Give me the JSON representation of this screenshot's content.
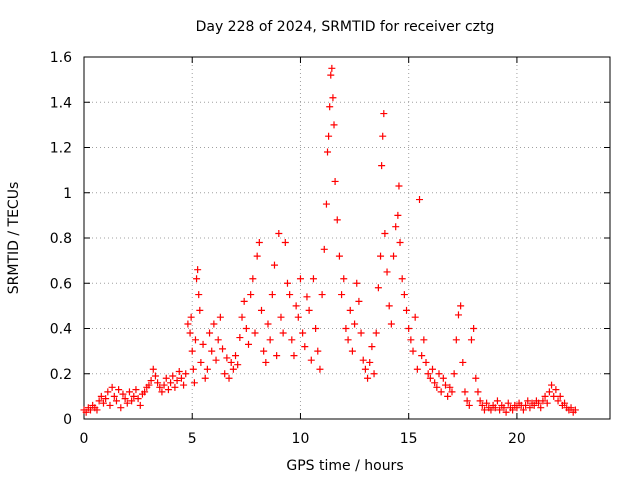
{
  "chart_data": {
    "type": "scatter",
    "title": "Day 228 of 2024, SRMTID for receiver cztg",
    "xlabel": "GPS time / hours",
    "ylabel": "SRMTID / TECUs",
    "xlim": [
      0,
      24.3
    ],
    "ylim": [
      0,
      1.6
    ],
    "xticks": [
      0,
      5,
      10,
      15,
      20
    ],
    "xtick_labels": [
      "0",
      "5",
      "10",
      "15",
      "20"
    ],
    "yticks": [
      0,
      0.2,
      0.4,
      0.6,
      0.8,
      1.0,
      1.2,
      1.4,
      1.6
    ],
    "ytick_labels": [
      "0",
      "0.2",
      "0.4",
      "0.6",
      "0.8",
      "1",
      "1.2",
      "1.4",
      "1.6"
    ],
    "grid": true,
    "marker": "+",
    "colors": {
      "series": "#ff0000",
      "axis": "#000000",
      "grid": "#a0a0a0"
    },
    "series": [
      {
        "name": "SRMTID",
        "points": [
          [
            0.0,
            0.04
          ],
          [
            0.1,
            0.03
          ],
          [
            0.2,
            0.05
          ],
          [
            0.3,
            0.04
          ],
          [
            0.4,
            0.06
          ],
          [
            0.5,
            0.05
          ],
          [
            0.6,
            0.04
          ],
          [
            0.7,
            0.08
          ],
          [
            0.8,
            0.1
          ],
          [
            0.9,
            0.07
          ],
          [
            1.0,
            0.09
          ],
          [
            1.1,
            0.12
          ],
          [
            1.2,
            0.06
          ],
          [
            1.3,
            0.14
          ],
          [
            1.4,
            0.1
          ],
          [
            1.5,
            0.08
          ],
          [
            1.6,
            0.13
          ],
          [
            1.7,
            0.05
          ],
          [
            1.8,
            0.11
          ],
          [
            1.9,
            0.09
          ],
          [
            2.0,
            0.07
          ],
          [
            2.1,
            0.12
          ],
          [
            2.2,
            0.08
          ],
          [
            2.3,
            0.1
          ],
          [
            2.4,
            0.13
          ],
          [
            2.5,
            0.09
          ],
          [
            2.6,
            0.06
          ],
          [
            2.7,
            0.11
          ],
          [
            2.8,
            0.12
          ],
          [
            2.9,
            0.14
          ],
          [
            3.0,
            0.15
          ],
          [
            3.1,
            0.17
          ],
          [
            3.2,
            0.22
          ],
          [
            3.3,
            0.19
          ],
          [
            3.4,
            0.16
          ],
          [
            3.5,
            0.14
          ],
          [
            3.6,
            0.12
          ],
          [
            3.7,
            0.15
          ],
          [
            3.8,
            0.18
          ],
          [
            3.9,
            0.13
          ],
          [
            4.0,
            0.16
          ],
          [
            4.1,
            0.19
          ],
          [
            4.2,
            0.14
          ],
          [
            4.3,
            0.17
          ],
          [
            4.4,
            0.21
          ],
          [
            4.5,
            0.18
          ],
          [
            4.6,
            0.15
          ],
          [
            4.7,
            0.2
          ],
          [
            4.8,
            0.42
          ],
          [
            4.9,
            0.38
          ],
          [
            4.95,
            0.45
          ],
          [
            5.0,
            0.3
          ],
          [
            5.05,
            0.22
          ],
          [
            5.1,
            0.16
          ],
          [
            5.15,
            0.35
          ],
          [
            5.2,
            0.62
          ],
          [
            5.25,
            0.66
          ],
          [
            5.3,
            0.55
          ],
          [
            5.35,
            0.48
          ],
          [
            5.4,
            0.25
          ],
          [
            5.5,
            0.33
          ],
          [
            5.6,
            0.18
          ],
          [
            5.7,
            0.22
          ],
          [
            5.8,
            0.38
          ],
          [
            5.9,
            0.3
          ],
          [
            6.0,
            0.42
          ],
          [
            6.1,
            0.26
          ],
          [
            6.2,
            0.35
          ],
          [
            6.3,
            0.45
          ],
          [
            6.4,
            0.31
          ],
          [
            6.5,
            0.2
          ],
          [
            6.6,
            0.27
          ],
          [
            6.7,
            0.18
          ],
          [
            6.8,
            0.25
          ],
          [
            6.9,
            0.22
          ],
          [
            7.0,
            0.28
          ],
          [
            7.1,
            0.24
          ],
          [
            7.2,
            0.36
          ],
          [
            7.3,
            0.45
          ],
          [
            7.4,
            0.52
          ],
          [
            7.5,
            0.4
          ],
          [
            7.6,
            0.33
          ],
          [
            7.7,
            0.55
          ],
          [
            7.8,
            0.62
          ],
          [
            7.9,
            0.38
          ],
          [
            8.0,
            0.72
          ],
          [
            8.1,
            0.78
          ],
          [
            8.2,
            0.48
          ],
          [
            8.3,
            0.3
          ],
          [
            8.4,
            0.25
          ],
          [
            8.5,
            0.42
          ],
          [
            8.6,
            0.35
          ],
          [
            8.7,
            0.55
          ],
          [
            8.8,
            0.68
          ],
          [
            8.9,
            0.28
          ],
          [
            9.0,
            0.82
          ],
          [
            9.1,
            0.45
          ],
          [
            9.2,
            0.38
          ],
          [
            9.3,
            0.78
          ],
          [
            9.4,
            0.6
          ],
          [
            9.5,
            0.55
          ],
          [
            9.6,
            0.35
          ],
          [
            9.7,
            0.28
          ],
          [
            9.8,
            0.5
          ],
          [
            9.9,
            0.45
          ],
          [
            10.0,
            0.62
          ],
          [
            10.1,
            0.38
          ],
          [
            10.2,
            0.32
          ],
          [
            10.3,
            0.54
          ],
          [
            10.4,
            0.48
          ],
          [
            10.5,
            0.26
          ],
          [
            10.6,
            0.62
          ],
          [
            10.7,
            0.4
          ],
          [
            10.8,
            0.3
          ],
          [
            10.9,
            0.22
          ],
          [
            11.0,
            0.55
          ],
          [
            11.1,
            0.75
          ],
          [
            11.2,
            0.95
          ],
          [
            11.25,
            1.18
          ],
          [
            11.3,
            1.25
          ],
          [
            11.35,
            1.38
          ],
          [
            11.4,
            1.52
          ],
          [
            11.45,
            1.55
          ],
          [
            11.5,
            1.42
          ],
          [
            11.55,
            1.3
          ],
          [
            11.6,
            1.05
          ],
          [
            11.7,
            0.88
          ],
          [
            11.8,
            0.72
          ],
          [
            11.9,
            0.55
          ],
          [
            12.0,
            0.62
          ],
          [
            12.1,
            0.4
          ],
          [
            12.2,
            0.35
          ],
          [
            12.3,
            0.48
          ],
          [
            12.4,
            0.3
          ],
          [
            12.5,
            0.42
          ],
          [
            12.6,
            0.6
          ],
          [
            12.7,
            0.52
          ],
          [
            12.8,
            0.38
          ],
          [
            12.9,
            0.26
          ],
          [
            13.0,
            0.22
          ],
          [
            13.1,
            0.18
          ],
          [
            13.2,
            0.25
          ],
          [
            13.3,
            0.32
          ],
          [
            13.4,
            0.2
          ],
          [
            13.5,
            0.38
          ],
          [
            13.6,
            0.58
          ],
          [
            13.7,
            0.72
          ],
          [
            13.75,
            1.12
          ],
          [
            13.8,
            1.25
          ],
          [
            13.85,
            1.35
          ],
          [
            13.9,
            0.82
          ],
          [
            14.0,
            0.65
          ],
          [
            14.1,
            0.5
          ],
          [
            14.2,
            0.42
          ],
          [
            14.3,
            0.72
          ],
          [
            14.4,
            0.85
          ],
          [
            14.5,
            0.9
          ],
          [
            14.55,
            1.03
          ],
          [
            14.6,
            0.78
          ],
          [
            14.7,
            0.62
          ],
          [
            14.8,
            0.55
          ],
          [
            14.9,
            0.48
          ],
          [
            15.0,
            0.4
          ],
          [
            15.1,
            0.35
          ],
          [
            15.2,
            0.3
          ],
          [
            15.3,
            0.45
          ],
          [
            15.4,
            0.22
          ],
          [
            15.5,
            0.97
          ],
          [
            15.6,
            0.28
          ],
          [
            15.7,
            0.35
          ],
          [
            15.8,
            0.25
          ],
          [
            15.9,
            0.2
          ],
          [
            16.0,
            0.18
          ],
          [
            16.1,
            0.22
          ],
          [
            16.2,
            0.16
          ],
          [
            16.3,
            0.14
          ],
          [
            16.4,
            0.2
          ],
          [
            16.5,
            0.12
          ],
          [
            16.6,
            0.18
          ],
          [
            16.7,
            0.15
          ],
          [
            16.8,
            0.1
          ],
          [
            16.9,
            0.14
          ],
          [
            17.0,
            0.12
          ],
          [
            17.1,
            0.2
          ],
          [
            17.2,
            0.35
          ],
          [
            17.3,
            0.46
          ],
          [
            17.4,
            0.5
          ],
          [
            17.5,
            0.25
          ],
          [
            17.6,
            0.12
          ],
          [
            17.7,
            0.08
          ],
          [
            17.8,
            0.06
          ],
          [
            17.9,
            0.35
          ],
          [
            18.0,
            0.4
          ],
          [
            18.1,
            0.18
          ],
          [
            18.2,
            0.12
          ],
          [
            18.3,
            0.08
          ],
          [
            18.4,
            0.06
          ],
          [
            18.5,
            0.04
          ],
          [
            18.6,
            0.07
          ],
          [
            18.7,
            0.05
          ],
          [
            18.8,
            0.04
          ],
          [
            18.9,
            0.06
          ],
          [
            19.0,
            0.05
          ],
          [
            19.1,
            0.08
          ],
          [
            19.2,
            0.04
          ],
          [
            19.3,
            0.06
          ],
          [
            19.4,
            0.05
          ],
          [
            19.5,
            0.03
          ],
          [
            19.6,
            0.07
          ],
          [
            19.7,
            0.05
          ],
          [
            19.8,
            0.04
          ],
          [
            19.9,
            0.06
          ],
          [
            20.0,
            0.05
          ],
          [
            20.1,
            0.07
          ],
          [
            20.2,
            0.06
          ],
          [
            20.3,
            0.04
          ],
          [
            20.4,
            0.06
          ],
          [
            20.5,
            0.08
          ],
          [
            20.6,
            0.05
          ],
          [
            20.7,
            0.07
          ],
          [
            20.8,
            0.06
          ],
          [
            20.9,
            0.08
          ],
          [
            21.0,
            0.07
          ],
          [
            21.1,
            0.05
          ],
          [
            21.2,
            0.08
          ],
          [
            21.3,
            0.1
          ],
          [
            21.4,
            0.07
          ],
          [
            21.5,
            0.12
          ],
          [
            21.6,
            0.15
          ],
          [
            21.7,
            0.1
          ],
          [
            21.8,
            0.13
          ],
          [
            21.9,
            0.08
          ],
          [
            22.0,
            0.1
          ],
          [
            22.1,
            0.06
          ],
          [
            22.2,
            0.07
          ],
          [
            22.3,
            0.05
          ],
          [
            22.4,
            0.04
          ],
          [
            22.5,
            0.05
          ],
          [
            22.6,
            0.03
          ],
          [
            22.7,
            0.04
          ]
        ]
      }
    ]
  }
}
